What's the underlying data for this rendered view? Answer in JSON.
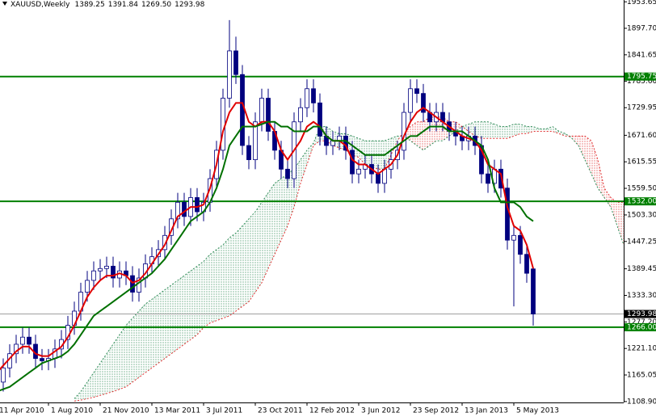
{
  "chart_data": {
    "type": "candlestick",
    "title": "XAUUSD,Weekly",
    "header_values": [
      "1389.25",
      "1391.84",
      "1269.50",
      "1293.98"
    ],
    "categories": [
      "11 Apr 2010",
      null,
      null,
      null,
      null,
      null,
      null,
      null,
      "1 Aug 2010",
      null,
      null,
      null,
      null,
      null,
      null,
      null,
      "21 Nov 2010",
      null,
      null,
      null,
      null,
      null,
      null,
      null,
      "13 Mar 2011",
      null,
      null,
      null,
      null,
      null,
      null,
      null,
      "3 Jul 2011",
      null,
      null,
      null,
      null,
      null,
      null,
      null,
      "23 Oct 2011",
      null,
      null,
      null,
      null,
      null,
      null,
      null,
      "12 Feb 2012",
      null,
      null,
      null,
      null,
      null,
      null,
      null,
      "3 Jun 2012",
      null,
      null,
      null,
      null,
      null,
      null,
      null,
      "23 Sep 2012",
      null,
      null,
      null,
      null,
      null,
      null,
      null,
      "13 Jan 2013",
      null,
      null,
      null,
      null,
      null,
      null,
      null,
      "5 May 2013",
      null,
      null,
      null,
      null,
      null,
      null,
      null,
      null,
      null,
      null,
      null,
      null,
      null,
      null,
      null,
      null,
      null
    ],
    "open": [
      1140,
      1150,
      1180,
      1210,
      1230,
      1245,
      1230,
      1200,
      1195,
      1200,
      1220,
      1240,
      1270,
      1300,
      1340,
      1365,
      1385,
      1390,
      1395,
      1370,
      1385,
      1375,
      1340,
      1370,
      1400,
      1415,
      1430,
      1460,
      1495,
      1530,
      1500,
      1540,
      1510,
      1530,
      1580,
      1640,
      1750,
      1850,
      1800,
      1650,
      1620,
      1700,
      1750,
      1680,
      1640,
      1600,
      1580,
      1700,
      1730,
      1770,
      1740,
      1670,
      1650,
      1660,
      1670,
      1640,
      1590,
      1600,
      1610,
      1590,
      1570,
      1600,
      1620,
      1640,
      1720,
      1770,
      1760,
      1720,
      1700,
      1720,
      1700,
      1680,
      1670,
      1660,
      1670,
      1650,
      1590,
      1570,
      1600,
      1560,
      1450,
      1460,
      1420,
      1389.25,
      null,
      null,
      null,
      null,
      null,
      null,
      null,
      null,
      null,
      null,
      null,
      null,
      null,
      null
    ],
    "high": [
      1170,
      1200,
      1230,
      1250,
      1265,
      1265,
      1250,
      1220,
      1220,
      1240,
      1260,
      1290,
      1320,
      1360,
      1385,
      1405,
      1410,
      1415,
      1415,
      1405,
      1405,
      1395,
      1390,
      1420,
      1435,
      1450,
      1480,
      1515,
      1550,
      1550,
      1560,
      1560,
      1550,
      1600,
      1660,
      1770,
      1915,
      1880,
      1820,
      1670,
      1720,
      1770,
      1770,
      1700,
      1660,
      1620,
      1720,
      1750,
      1790,
      1790,
      1760,
      1690,
      1680,
      1690,
      1690,
      1660,
      1620,
      1630,
      1630,
      1610,
      1620,
      1640,
      1660,
      1740,
      1790,
      1790,
      1780,
      1740,
      1740,
      1740,
      1720,
      1700,
      1690,
      1690,
      1690,
      1670,
      1610,
      1620,
      1620,
      1580,
      1480,
      1480,
      1440,
      1391.84,
      null,
      null,
      null,
      null,
      null,
      null,
      null,
      null,
      null,
      null,
      null,
      null,
      null,
      null
    ],
    "low": [
      1120,
      1130,
      1160,
      1190,
      1210,
      1210,
      1180,
      1175,
      1175,
      1180,
      1200,
      1220,
      1250,
      1280,
      1320,
      1345,
      1365,
      1370,
      1350,
      1350,
      1355,
      1320,
      1320,
      1350,
      1380,
      1395,
      1410,
      1440,
      1475,
      1480,
      1480,
      1490,
      1490,
      1510,
      1560,
      1620,
      1730,
      1780,
      1630,
      1600,
      1600,
      1680,
      1660,
      1620,
      1580,
      1560,
      1560,
      1680,
      1710,
      1720,
      1650,
      1630,
      1630,
      1640,
      1620,
      1570,
      1570,
      1580,
      1570,
      1550,
      1550,
      1580,
      1600,
      1620,
      1700,
      1740,
      1700,
      1680,
      1680,
      1680,
      1660,
      1650,
      1640,
      1640,
      1630,
      1570,
      1550,
      1550,
      1540,
      1430,
      1310,
      1400,
      1360,
      1269.5,
      null,
      null,
      null,
      null,
      null,
      null,
      null,
      null,
      null,
      null,
      null,
      null,
      null,
      null
    ],
    "close": [
      1150,
      1180,
      1210,
      1230,
      1245,
      1230,
      1200,
      1195,
      1200,
      1220,
      1240,
      1270,
      1300,
      1340,
      1365,
      1385,
      1390,
      1395,
      1370,
      1385,
      1375,
      1340,
      1370,
      1400,
      1415,
      1430,
      1460,
      1495,
      1530,
      1500,
      1540,
      1510,
      1530,
      1580,
      1640,
      1750,
      1850,
      1800,
      1650,
      1620,
      1700,
      1750,
      1680,
      1640,
      1600,
      1580,
      1700,
      1730,
      1770,
      1740,
      1670,
      1650,
      1660,
      1670,
      1640,
      1590,
      1600,
      1610,
      1590,
      1570,
      1600,
      1620,
      1640,
      1720,
      1770,
      1760,
      1720,
      1700,
      1720,
      1700,
      1680,
      1670,
      1660,
      1670,
      1650,
      1590,
      1570,
      1600,
      1560,
      1450,
      1460,
      1420,
      1380,
      1293.98,
      null,
      null,
      null,
      null,
      null,
      null,
      null,
      null,
      null,
      null,
      null,
      null,
      null,
      null
    ],
    "up_color": "#ffffff",
    "down_color": "#00007f",
    "outline_color": "#00007f",
    "lines": [
      {
        "color": "#e00000",
        "values": [
          1170,
          1185,
          1200,
          1215,
          1225,
          1225,
          1210,
          1205,
          1205,
          1215,
          1225,
          1245,
          1270,
          1300,
          1330,
          1350,
          1365,
          1375,
          1375,
          1380,
          1375,
          1360,
          1365,
          1380,
          1400,
          1420,
          1440,
          1470,
          1500,
          1510,
          1520,
          1520,
          1525,
          1560,
          1610,
          1680,
          1720,
          1740,
          1740,
          1700,
          1690,
          1700,
          1700,
          1680,
          1640,
          1620,
          1640,
          1660,
          1690,
          1700,
          1690,
          1670,
          1660,
          1660,
          1650,
          1620,
          1610,
          1610,
          1600,
          1590,
          1600,
          1610,
          1630,
          1670,
          1700,
          1720,
          1730,
          1720,
          1710,
          1700,
          1690,
          1680,
          1670,
          1665,
          1660,
          1640,
          1610,
          1600,
          1590,
          1520,
          1480,
          1470,
          1440,
          1390,
          null,
          null,
          null,
          null,
          null,
          null,
          null,
          null,
          null,
          null,
          null,
          null,
          null,
          null
        ]
      },
      {
        "color": "#007000",
        "values": [
          1130,
          1135,
          1140,
          1150,
          1160,
          1170,
          1180,
          1190,
          1195,
          1200,
          1205,
          1215,
          1230,
          1250,
          1270,
          1290,
          1300,
          1310,
          1320,
          1330,
          1340,
          1350,
          1360,
          1370,
          1380,
          1395,
          1410,
          1430,
          1450,
          1470,
          1490,
          1500,
          1510,
          1530,
          1560,
          1600,
          1650,
          1670,
          1690,
          1690,
          1690,
          1695,
          1700,
          1700,
          1690,
          1690,
          1680,
          1680,
          1680,
          1690,
          1690,
          1670,
          1660,
          1660,
          1660,
          1650,
          1640,
          1630,
          1630,
          1630,
          1630,
          1640,
          1650,
          1660,
          1670,
          1670,
          1680,
          1690,
          1690,
          1690,
          1680,
          1680,
          1680,
          1670,
          1660,
          1650,
          1620,
          1560,
          1530,
          1530,
          1530,
          1520,
          1500,
          1490,
          null,
          null,
          null,
          null,
          null,
          null,
          null,
          null,
          null,
          null,
          null,
          null,
          null,
          null
        ]
      }
    ],
    "cloud": {
      "up_color": "#2e8b57",
      "down_color": "#e03030",
      "span_a": [
        null,
        null,
        null,
        null,
        null,
        null,
        null,
        null,
        null,
        null,
        null,
        null,
        1115,
        1130,
        1150,
        1170,
        1190,
        1210,
        1230,
        1250,
        1270,
        1285,
        1300,
        1315,
        1325,
        1335,
        1345,
        1355,
        1365,
        1375,
        1385,
        1395,
        1405,
        1420,
        1430,
        1440,
        1455,
        1465,
        1480,
        1495,
        1510,
        1530,
        1550,
        1570,
        1580,
        1590,
        1600,
        1620,
        1640,
        1655,
        1690,
        1690,
        1680,
        1675,
        1675,
        1670,
        1665,
        1660,
        1660,
        1660,
        1660,
        1665,
        1670,
        1670,
        1660,
        1650,
        1640,
        1650,
        1660,
        1660,
        1670,
        1680,
        1690,
        1695,
        1700,
        1700,
        1700,
        1695,
        1690,
        1690,
        1695,
        1695,
        1690,
        1690,
        1685,
        1685,
        1690,
        1680,
        1675,
        1665,
        1650,
        1620,
        1590,
        1560,
        1540,
        1520,
        1480,
        1440
      ],
      "span_b": [
        null,
        null,
        null,
        null,
        null,
        null,
        null,
        null,
        null,
        null,
        null,
        null,
        1110,
        1112,
        1115,
        1118,
        1122,
        1126,
        1130,
        1135,
        1140,
        1150,
        1160,
        1170,
        1180,
        1190,
        1200,
        1210,
        1220,
        1230,
        1240,
        1250,
        1265,
        1275,
        1280,
        1285,
        1290,
        1300,
        1310,
        1320,
        1340,
        1360,
        1390,
        1420,
        1450,
        1480,
        1520,
        1570,
        1610,
        1650,
        1660,
        1660,
        1650,
        1645,
        1640,
        1630,
        1625,
        1610,
        1605,
        1600,
        1600,
        1630,
        1660,
        1680,
        1690,
        1700,
        1700,
        1710,
        1710,
        1710,
        1700,
        1700,
        1690,
        1680,
        1670,
        1665,
        1665,
        1665,
        1665,
        1665,
        1670,
        1675,
        1675,
        1680,
        1680,
        1680,
        1680,
        1675,
        1670,
        1670,
        1670,
        1670,
        1660,
        1620,
        1560,
        1540,
        1530,
        1530
      ]
    },
    "hlines": {
      "color": "#008000",
      "values": [
        1795.75,
        1532,
        1266
      ],
      "value_labels": [
        "1795.75",
        "1532.00",
        "1266.00"
      ]
    },
    "last_price": 1293.98,
    "ylim": [
      1107,
      1957.5
    ],
    "yticks": [
      1953.65,
      {
        "value": 1897.7,
        "label": "1897.70"
      },
      1841.65,
      {
        "value": 1785.6,
        "label": "1785.60"
      },
      1729.95,
      {
        "value": 1671.6,
        "label": "1671.60"
      },
      1615.55,
      {
        "value": 1559.5,
        "label": "1559.50"
      },
      {
        "value": 1503.3,
        "label": "1503.30"
      },
      1447.25,
      1389.45,
      {
        "value": 1333.3,
        "label": "1333.30"
      },
      {
        "value": 1277.2,
        "label": "1277.20"
      },
      {
        "value": 1221.1,
        "label": "1221.10"
      },
      1165.05,
      {
        "value": 1108.9,
        "label": "1108.90"
      }
    ]
  }
}
